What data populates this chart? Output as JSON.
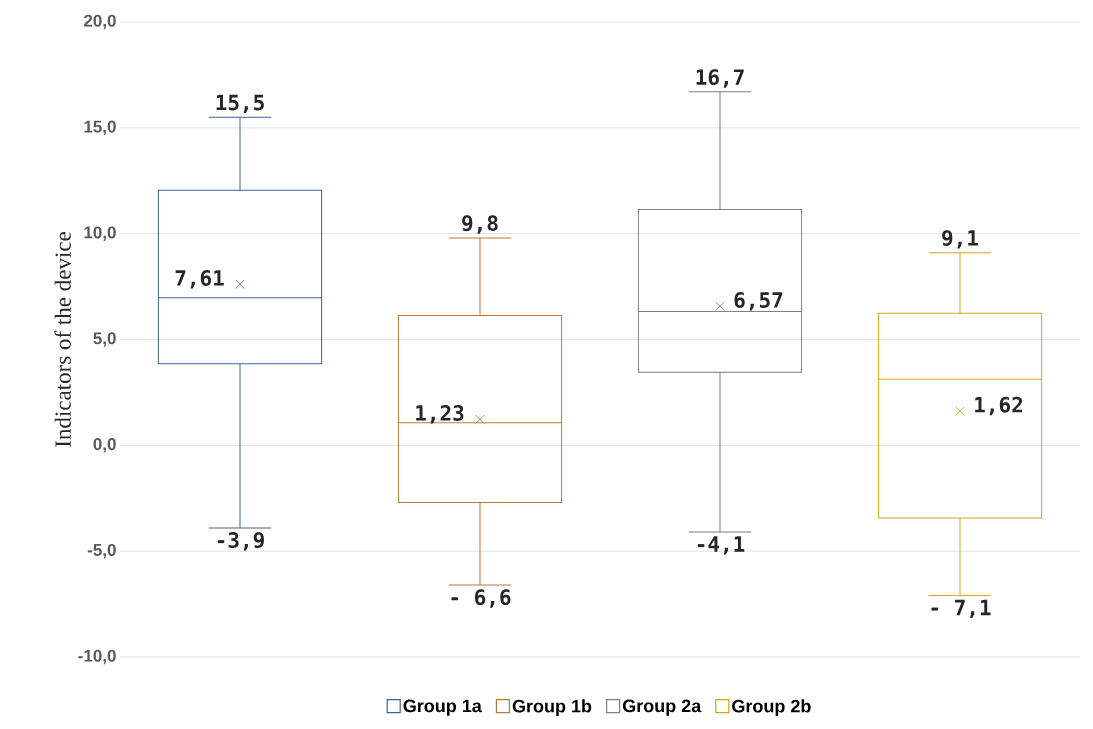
{
  "chart_data": {
    "type": "box",
    "ylabel": "Indicators of the device",
    "categories": [
      null,
      null,
      null,
      null
    ],
    "series": [
      {
        "name": "Group 1a",
        "color": "#3e6296",
        "boxes": [
          {
            "low": -3.9,
            "q1": 3.85,
            "median": 6.97,
            "q3": 12.05,
            "high": 15.5,
            "mean": 7.61
          },
          null,
          null,
          null
        ]
      },
      {
        "name": "Group 1b",
        "color": "#c0773a",
        "boxes": [
          null,
          {
            "low": -6.6,
            "q1": -2.7,
            "median": 1.07,
            "q3": 6.13,
            "high": 9.8,
            "mean": 1.23
          },
          null,
          null
        ]
      },
      {
        "name": "Group 2a",
        "color": "#7f7f7f",
        "boxes": [
          null,
          null,
          {
            "low": -4.1,
            "q1": 3.45,
            "median": 6.32,
            "q3": 11.14,
            "high": 16.7,
            "mean": 6.57
          },
          null
        ]
      },
      {
        "name": "Group 2b",
        "color": "#cfaa10",
        "boxes": [
          null,
          null,
          null,
          {
            "low": -7.1,
            "q1": -3.43,
            "median": 3.12,
            "q3": 6.24,
            "high": 9.1,
            "mean": 1.62
          }
        ]
      }
    ],
    "ylim": [
      -10,
      20
    ],
    "yticks": [
      {
        "value": -10,
        "label": "-10,0"
      },
      {
        "value": -5,
        "label": "-5,0"
      },
      {
        "value": 0,
        "label": "0,0"
      },
      {
        "value": 5,
        "label": "5,0"
      },
      {
        "value": 10,
        "label": "10,0"
      },
      {
        "value": 15,
        "label": "15,0"
      },
      {
        "value": 20,
        "label": "20,0"
      }
    ],
    "annotations": [
      "15,5",
      "-3,9",
      "7,61",
      "9,8",
      "- 6,6",
      "1,23",
      "16,7",
      "-4,1",
      "6,57",
      "9,1",
      "- 7,1",
      "1,62"
    ],
    "grid": "y",
    "legend": "bottom",
    "marker": "cross"
  }
}
